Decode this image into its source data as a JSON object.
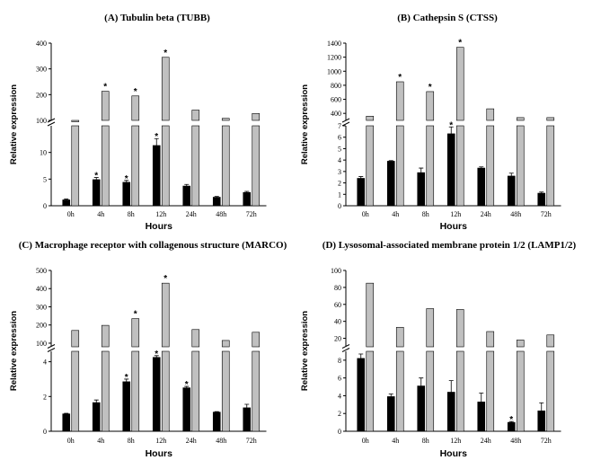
{
  "chart_data": [
    {
      "type": "bar",
      "title": "(A) Tubulin beta (TUBB)",
      "xlabel": "Hours",
      "ylabel": "Relative expression",
      "categories": [
        "0h",
        "4h",
        "8h",
        "12h",
        "24h",
        "48h",
        "72h"
      ],
      "axis_break": true,
      "lower_ylim": [
        0,
        15
      ],
      "lower_yticks": [
        0,
        5,
        10
      ],
      "upper_ylim": [
        100,
        400
      ],
      "upper_yticks": [
        100,
        200,
        300,
        400
      ],
      "series": [
        {
          "color": "#000000",
          "values": [
            1.1,
            4.9,
            4.4,
            11.3,
            3.7,
            1.6,
            2.5
          ],
          "errors": [
            0.15,
            0.4,
            0.35,
            1.3,
            0.3,
            0.15,
            0.2
          ],
          "significant": [
            false,
            true,
            true,
            true,
            false,
            false,
            false
          ]
        },
        {
          "color": "#c0c0c0",
          "values": [
            100,
            213,
            195,
            345,
            140,
            108,
            127
          ],
          "errors": [
            0,
            0,
            0,
            0,
            0,
            0,
            0
          ],
          "significant": [
            false,
            true,
            true,
            true,
            false,
            false,
            false
          ]
        }
      ],
      "significance_marker": "*"
    },
    {
      "type": "bar",
      "title": "(B) Cathepsin S (CTSS)",
      "xlabel": "Hours",
      "ylabel": "Relative expression",
      "categories": [
        "0h",
        "4h",
        "8h",
        "12h",
        "24h",
        "48h",
        "72h"
      ],
      "axis_break": true,
      "lower_ylim": [
        0,
        7
      ],
      "lower_yticks": [
        0,
        1,
        2,
        3,
        4,
        5,
        6,
        7
      ],
      "upper_ylim": [
        300,
        1400
      ],
      "upper_yticks": [
        400,
        600,
        800,
        1000,
        1200,
        1400
      ],
      "series": [
        {
          "color": "#000000",
          "values": [
            2.4,
            3.9,
            2.9,
            6.3,
            3.3,
            2.6,
            1.1
          ],
          "errors": [
            0.15,
            0.05,
            0.4,
            0.6,
            0.1,
            0.25,
            0.1
          ],
          "significant": [
            false,
            false,
            false,
            true,
            false,
            false,
            false
          ]
        },
        {
          "color": "#c0c0c0",
          "values": [
            360,
            850,
            710,
            1340,
            465,
            340,
            340
          ],
          "errors": [
            0,
            0,
            0,
            0,
            0,
            0,
            0
          ],
          "significant": [
            false,
            true,
            true,
            true,
            false,
            false,
            false
          ]
        }
      ],
      "significance_marker": "*"
    },
    {
      "type": "bar",
      "title": "(C) Macrophage receptor with collagenous structure (MARCO)",
      "xlabel": "Hours",
      "ylabel": "Relative expression",
      "categories": [
        "0h",
        "4h",
        "8h",
        "12h",
        "24h",
        "48h",
        "72h"
      ],
      "axis_break": true,
      "lower_ylim": [
        0,
        4.6
      ],
      "lower_yticks": [
        0,
        2,
        4
      ],
      "upper_ylim": [
        80,
        500
      ],
      "upper_yticks": [
        100,
        200,
        300,
        400,
        500
      ],
      "series": [
        {
          "color": "#000000",
          "values": [
            1.0,
            1.65,
            2.85,
            4.25,
            2.5,
            1.1,
            1.35
          ],
          "errors": [
            0.03,
            0.15,
            0.15,
            0.1,
            0.08,
            0.03,
            0.2
          ],
          "significant": [
            false,
            false,
            true,
            true,
            true,
            false,
            false
          ]
        },
        {
          "color": "#c0c0c0",
          "values": [
            170,
            198,
            235,
            430,
            175,
            115,
            160
          ],
          "errors": [
            0,
            0,
            0,
            0,
            0,
            0,
            0
          ],
          "significant": [
            false,
            false,
            true,
            true,
            false,
            false,
            false
          ]
        }
      ],
      "significance_marker": "*"
    },
    {
      "type": "bar",
      "title": "(D) Lysosomal-associated membrane protein 1/2 (LAMP1/2)",
      "xlabel": "Hours",
      "ylabel": "Relative expression",
      "categories": [
        "0h",
        "4h",
        "8h",
        "12h",
        "24h",
        "48h",
        "72h"
      ],
      "axis_break": true,
      "lower_ylim": [
        0,
        9
      ],
      "lower_yticks": [
        0,
        2,
        4,
        6,
        8
      ],
      "upper_ylim": [
        10,
        100
      ],
      "upper_yticks": [
        20,
        40,
        60,
        80,
        100
      ],
      "series": [
        {
          "color": "#000000",
          "values": [
            8.2,
            3.9,
            5.1,
            4.4,
            3.3,
            1.0,
            2.3
          ],
          "errors": [
            0.5,
            0.3,
            0.9,
            1.3,
            1.0,
            0.1,
            0.9
          ],
          "significant": [
            false,
            false,
            false,
            false,
            false,
            true,
            false
          ]
        },
        {
          "color": "#c0c0c0",
          "values": [
            85,
            33,
            55,
            54,
            28,
            18,
            24
          ],
          "errors": [
            0,
            0,
            0,
            0,
            0,
            0,
            0
          ],
          "significant": [
            false,
            false,
            false,
            false,
            false,
            false,
            false
          ]
        }
      ],
      "significance_marker": "*"
    }
  ]
}
